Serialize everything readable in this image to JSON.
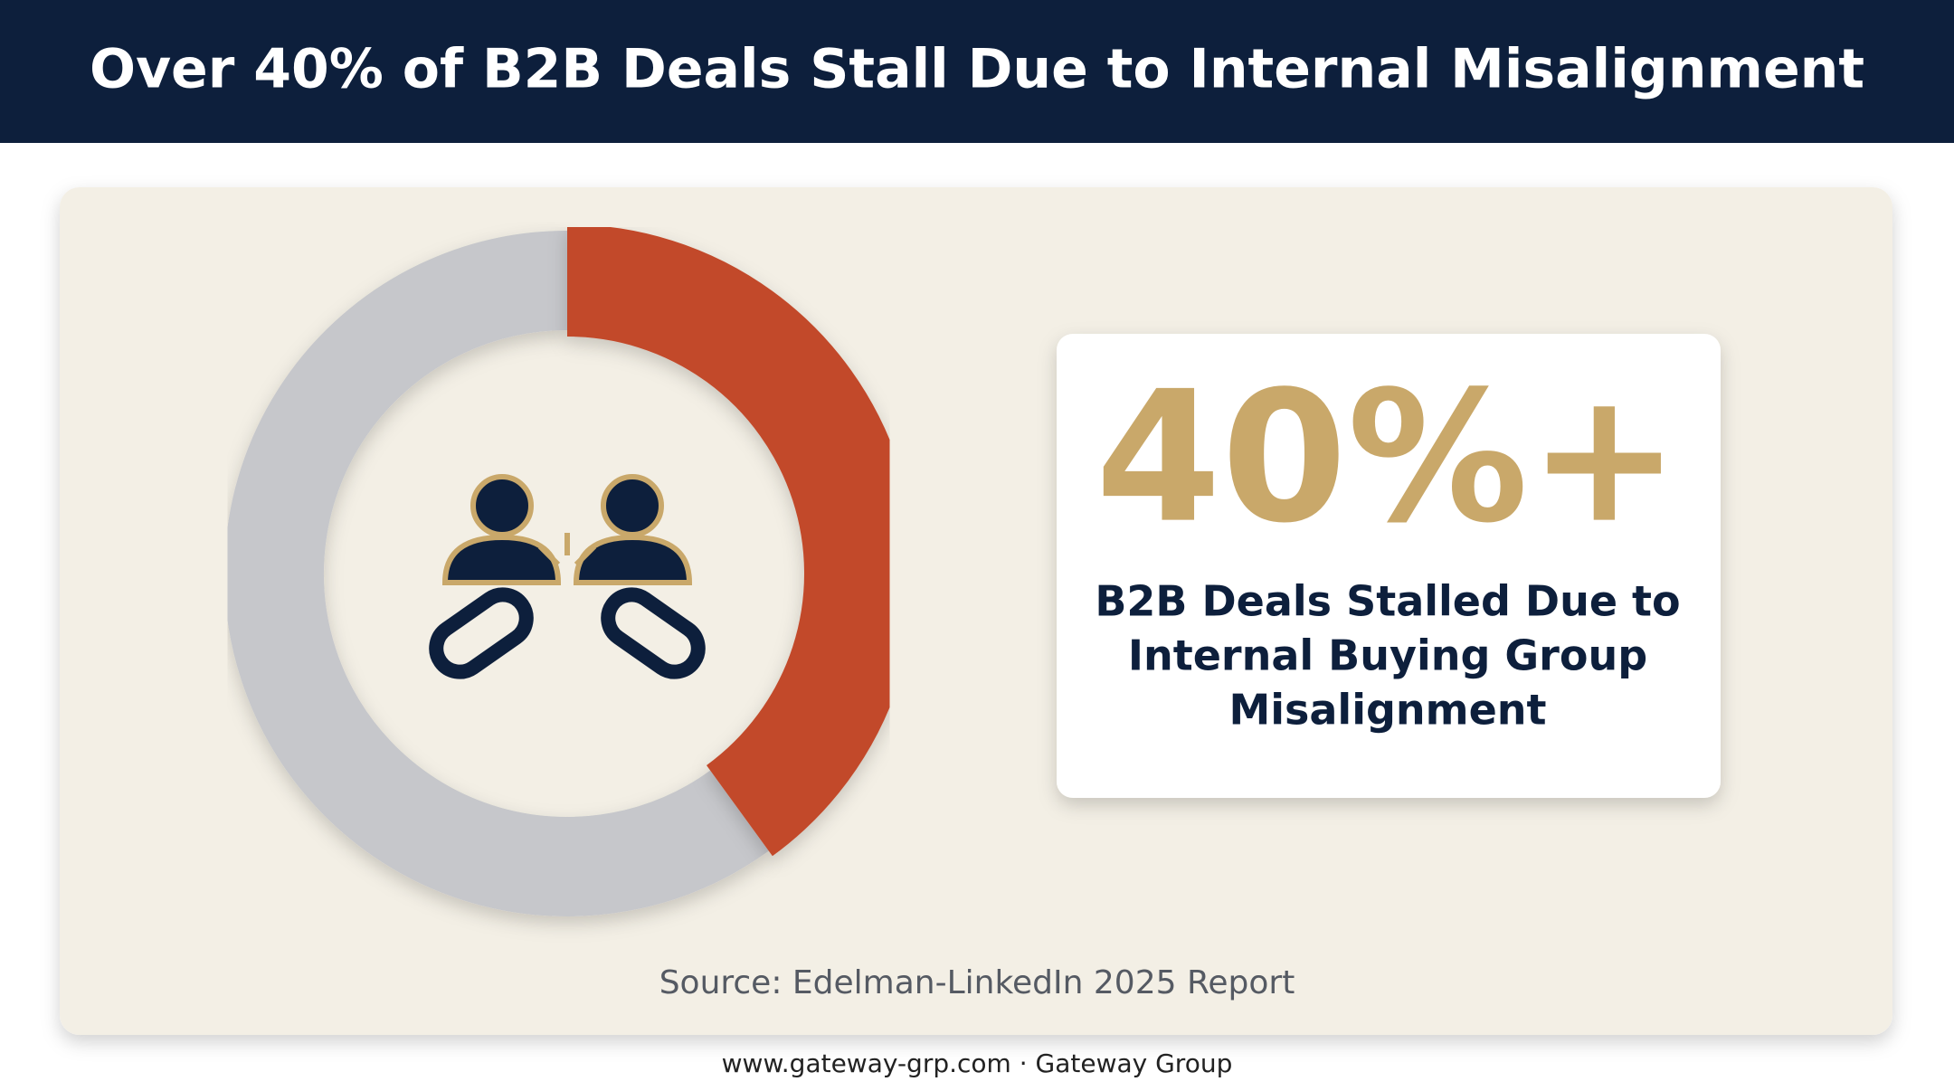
{
  "header": {
    "title": "Over 40% of B2B Deals Stall Due to Internal Misalignment"
  },
  "chart_data": {
    "type": "donut",
    "values": [
      40,
      60
    ],
    "colors": [
      "#c24a2c",
      "#c6c7cb"
    ]
  },
  "stat": {
    "value": "40%+",
    "lines": [
      "B2B Deals Stalled Due to",
      "Internal Buying Group",
      "Misalignment"
    ]
  },
  "source": "Source: Edelman-LinkedIn 2025 Report",
  "footer": "www.gateway-grp.com · Gateway Group"
}
